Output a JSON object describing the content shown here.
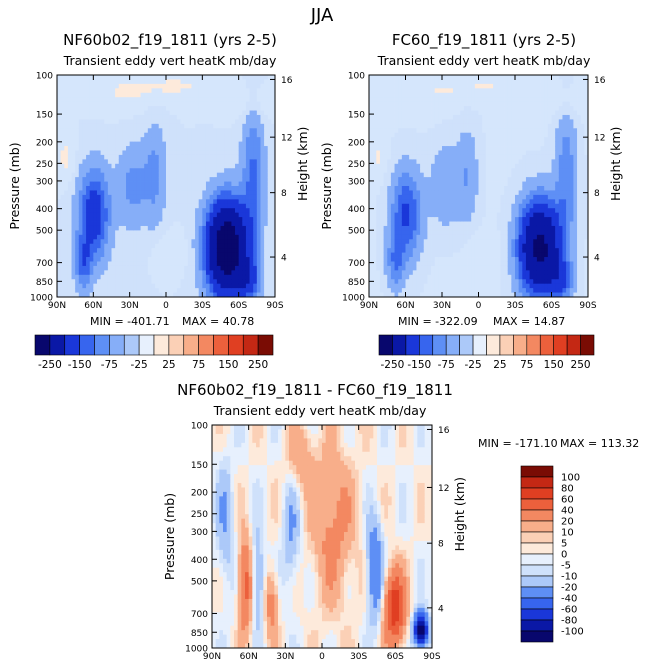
{
  "page": {
    "season": "JJA"
  },
  "colors": {
    "neg": [
      "#08076d",
      "#0a18a6",
      "#1a37d9",
      "#3765ee",
      "#5e8ff5",
      "#86aef8",
      "#acc9f9",
      "#cfe1fb",
      "#e7f0fd"
    ],
    "pos": [
      "#fdeadb",
      "#fbd0b6",
      "#f8ae8a",
      "#f38861",
      "#ec603c",
      "#e03f22",
      "#c42814",
      "#9e160b",
      "#7a0c04"
    ]
  },
  "chart_data": [
    {
      "id": "panel-a",
      "type": "contour",
      "title": "NF60b02_f19_1811 (yrs 2-5)",
      "subtitle": "Transient eddy vert heatK mb/day",
      "ylabel": "Pressure (mb)",
      "y2label": "Height (km)",
      "xticks": [
        "90N",
        "60N",
        "30N",
        "0",
        "30S",
        "60S",
        "90S"
      ],
      "yticks": [
        "100",
        "150",
        "200",
        "250",
        "300",
        "400",
        "500",
        "700",
        "850",
        "1000"
      ],
      "y2ticks": [
        "16",
        "12",
        "8",
        "4"
      ],
      "min_label": "MIN = -401.71",
      "max_label": "MAX = 40.78",
      "strength": 1.0
    },
    {
      "id": "panel-b",
      "type": "contour",
      "title": "FC60_f19_1811 (yrs 2-5)",
      "subtitle": "Transient eddy vert heatK mb/day",
      "ylabel": "Pressure (mb)",
      "y2label": "Height (km)",
      "xticks": [
        "90N",
        "60N",
        "30N",
        "0",
        "30S",
        "60S",
        "90S"
      ],
      "yticks": [
        "100",
        "150",
        "200",
        "250",
        "300",
        "400",
        "500",
        "700",
        "850",
        "1000"
      ],
      "y2ticks": [
        "16",
        "12",
        "8",
        "4"
      ],
      "min_label": "MIN = -322.09",
      "max_label": "MAX = 14.87",
      "strength": 0.82
    },
    {
      "id": "panel-diff",
      "type": "contour",
      "title": "NF60b02_f19_1811 - FC60_f19_1811",
      "subtitle": "Transient eddy vert heatK mb/day",
      "ylabel": "Pressure (mb)",
      "y2label": "Height (km)",
      "xticks": [
        "90N",
        "60N",
        "30N",
        "0",
        "30S",
        "60S",
        "90S"
      ],
      "yticks": [
        "100",
        "150",
        "200",
        "250",
        "300",
        "400",
        "500",
        "700",
        "850",
        "1000"
      ],
      "y2ticks": [
        "16",
        "12",
        "8",
        "4"
      ],
      "min_label": "MIN = -171.10",
      "max_label": "MAX = 113.32"
    },
    {
      "id": "colorbar-top",
      "type": "colorbar",
      "labels": [
        "-250",
        "-150",
        "-75",
        "-25",
        "25",
        "75",
        "150",
        "250"
      ]
    },
    {
      "id": "colorbar-diff",
      "type": "colorbar",
      "labels": [
        "100",
        "80",
        "60",
        "40",
        "20",
        "10",
        "5",
        "0",
        "-5",
        "-10",
        "-20",
        "-40",
        "-60",
        "-80",
        "-100"
      ]
    }
  ]
}
